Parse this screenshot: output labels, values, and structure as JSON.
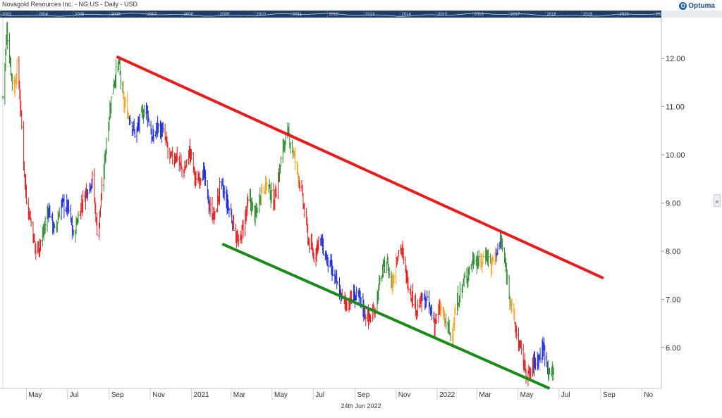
{
  "header": {
    "title": "Novagold Resources Inc. - NG:US - Daily - USD",
    "brand": "Optuma",
    "brand_icon": "optuma-logo-icon"
  },
  "navigator": {
    "year_labels": [
      "2003",
      "2004",
      "2005",
      "2006",
      "2007",
      "2008",
      "2009",
      "2010",
      "2011",
      "2012",
      "2013",
      "2014",
      "2015",
      "2016",
      "2017",
      "2018",
      "2019",
      "2020",
      "2021",
      "2022",
      "2023"
    ],
    "background": "#1e3d6b"
  },
  "footer": {
    "date_label": "24th Jun 2022"
  },
  "side_panel": {
    "collapse_icon": "chevron-left-icon",
    "collapse_glyph": "«"
  },
  "chart_data": {
    "type": "ohlc",
    "title": "Novagold Resources Inc. - NG:US - Daily - USD",
    "x_axis": {
      "ticks": [
        "May",
        "Jul",
        "Sep",
        "Nov",
        "2021",
        "Mar",
        "May",
        "Jul",
        "Sep",
        "Nov",
        "2022",
        "Mar",
        "May",
        "Jul",
        "Sep",
        "No"
      ],
      "tick_dates": [
        "2020-05-01",
        "2020-07-01",
        "2020-09-01",
        "2020-11-01",
        "2021-01-01",
        "2021-03-01",
        "2021-05-01",
        "2021-07-01",
        "2021-09-01",
        "2021-11-01",
        "2022-01-01",
        "2022-03-01",
        "2022-05-01",
        "2022-07-01",
        "2022-09-01",
        "2022-11-01"
      ],
      "range": [
        "2020-03-27",
        "2022-11-30"
      ]
    },
    "y_axis": {
      "ticks": [
        "12.00",
        "11.00",
        "10.00",
        "9.00",
        "8.00",
        "7.00",
        "6.00"
      ],
      "range": [
        5.15,
        12.85
      ],
      "position": "right"
    },
    "grid": false,
    "legend": "none",
    "bar_colors": {
      "up_trend": "#2f8a2f",
      "down_trend": "#e02020",
      "neutral": "#1f2fd8",
      "transition": "#f2a321"
    },
    "price_path": [
      {
        "date": "2020-03-27",
        "close": 11.2,
        "color": "#2f8a2f"
      },
      {
        "date": "2020-04-02",
        "close": 12.6,
        "color": "#2f8a2f"
      },
      {
        "date": "2020-04-07",
        "close": 11.9,
        "color": "#2f8a2f"
      },
      {
        "date": "2020-04-12",
        "close": 11.3,
        "color": "#f2a321"
      },
      {
        "date": "2020-04-18",
        "close": 11.9,
        "color": "#e02020"
      },
      {
        "date": "2020-04-23",
        "close": 10.8,
        "color": "#e02020"
      },
      {
        "date": "2020-04-30",
        "close": 9.2,
        "color": "#e02020"
      },
      {
        "date": "2020-05-08",
        "close": 8.6,
        "color": "#e02020"
      },
      {
        "date": "2020-05-15",
        "close": 8.0,
        "color": "#e02020"
      },
      {
        "date": "2020-05-25",
        "close": 8.3,
        "color": "#2f8a2f"
      },
      {
        "date": "2020-06-03",
        "close": 8.9,
        "color": "#1f2fd8"
      },
      {
        "date": "2020-06-12",
        "close": 8.4,
        "color": "#2f8a2f"
      },
      {
        "date": "2020-06-22",
        "close": 9.0,
        "color": "#1f2fd8"
      },
      {
        "date": "2020-07-02",
        "close": 8.9,
        "color": "#1f2fd8"
      },
      {
        "date": "2020-07-10",
        "close": 8.3,
        "color": "#2f8a2f"
      },
      {
        "date": "2020-07-20",
        "close": 8.9,
        "color": "#e02020"
      },
      {
        "date": "2020-07-30",
        "close": 9.3,
        "color": "#1f2fd8"
      },
      {
        "date": "2020-08-07",
        "close": 9.5,
        "color": "#e02020"
      },
      {
        "date": "2020-08-15",
        "close": 8.3,
        "color": "#e02020"
      },
      {
        "date": "2020-08-22",
        "close": 9.4,
        "color": "#2f8a2f"
      },
      {
        "date": "2020-08-30",
        "close": 10.6,
        "color": "#2f8a2f"
      },
      {
        "date": "2020-09-07",
        "close": 11.5,
        "color": "#2f8a2f"
      },
      {
        "date": "2020-09-15",
        "close": 11.9,
        "color": "#2f8a2f"
      },
      {
        "date": "2020-09-22",
        "close": 11.1,
        "color": "#f2a321"
      },
      {
        "date": "2020-10-01",
        "close": 10.8,
        "color": "#1f2fd8"
      },
      {
        "date": "2020-10-10",
        "close": 10.4,
        "color": "#1f2fd8"
      },
      {
        "date": "2020-10-18",
        "close": 10.8,
        "color": "#2f8a2f"
      },
      {
        "date": "2020-10-26",
        "close": 11.0,
        "color": "#1f2fd8"
      },
      {
        "date": "2020-11-04",
        "close": 10.3,
        "color": "#1f2fd8"
      },
      {
        "date": "2020-11-12",
        "close": 10.6,
        "color": "#1f2fd8"
      },
      {
        "date": "2020-11-22",
        "close": 10.4,
        "color": "#e02020"
      },
      {
        "date": "2020-11-30",
        "close": 9.9,
        "color": "#e02020"
      },
      {
        "date": "2020-12-10",
        "close": 10.0,
        "color": "#e02020"
      },
      {
        "date": "2020-12-20",
        "close": 9.6,
        "color": "#e02020"
      },
      {
        "date": "2020-12-30",
        "close": 10.1,
        "color": "#e02020"
      },
      {
        "date": "2021-01-08",
        "close": 9.4,
        "color": "#e02020"
      },
      {
        "date": "2021-01-18",
        "close": 9.7,
        "color": "#1f2fd8"
      },
      {
        "date": "2021-01-28",
        "close": 8.9,
        "color": "#e02020"
      },
      {
        "date": "2021-02-05",
        "close": 8.7,
        "color": "#e02020"
      },
      {
        "date": "2021-02-13",
        "close": 9.4,
        "color": "#1f2fd8"
      },
      {
        "date": "2021-02-23",
        "close": 9.0,
        "color": "#1f2fd8"
      },
      {
        "date": "2021-03-04",
        "close": 8.6,
        "color": "#e02020"
      },
      {
        "date": "2021-03-12",
        "close": 8.1,
        "color": "#e02020"
      },
      {
        "date": "2021-03-20",
        "close": 8.6,
        "color": "#e02020"
      },
      {
        "date": "2021-03-28",
        "close": 9.1,
        "color": "#2f8a2f"
      },
      {
        "date": "2021-04-06",
        "close": 8.7,
        "color": "#2f8a2f"
      },
      {
        "date": "2021-04-15",
        "close": 9.3,
        "color": "#f2a321"
      },
      {
        "date": "2021-04-24",
        "close": 9.4,
        "color": "#2f8a2f"
      },
      {
        "date": "2021-05-03",
        "close": 9.0,
        "color": "#e02020"
      },
      {
        "date": "2021-05-11",
        "close": 9.6,
        "color": "#2f8a2f"
      },
      {
        "date": "2021-05-19",
        "close": 10.3,
        "color": "#2f8a2f"
      },
      {
        "date": "2021-05-26",
        "close": 10.4,
        "color": "#2f8a2f"
      },
      {
        "date": "2021-06-02",
        "close": 10.0,
        "color": "#f2a321"
      },
      {
        "date": "2021-06-10",
        "close": 9.5,
        "color": "#e02020"
      },
      {
        "date": "2021-06-17",
        "close": 8.9,
        "color": "#e02020"
      },
      {
        "date": "2021-06-24",
        "close": 8.2,
        "color": "#e02020"
      },
      {
        "date": "2021-07-02",
        "close": 7.9,
        "color": "#e02020"
      },
      {
        "date": "2021-07-10",
        "close": 8.3,
        "color": "#1f2fd8"
      },
      {
        "date": "2021-07-19",
        "close": 7.9,
        "color": "#1f2fd8"
      },
      {
        "date": "2021-07-28",
        "close": 7.6,
        "color": "#1f2fd8"
      },
      {
        "date": "2021-08-05",
        "close": 7.3,
        "color": "#1f2fd8"
      },
      {
        "date": "2021-08-13",
        "close": 7.0,
        "color": "#e02020"
      },
      {
        "date": "2021-08-21",
        "close": 6.9,
        "color": "#e02020"
      },
      {
        "date": "2021-08-30",
        "close": 7.1,
        "color": "#1f2fd8"
      },
      {
        "date": "2021-09-08",
        "close": 7.0,
        "color": "#1f2fd8"
      },
      {
        "date": "2021-09-16",
        "close": 6.7,
        "color": "#e02020"
      },
      {
        "date": "2021-09-24",
        "close": 6.6,
        "color": "#e02020"
      },
      {
        "date": "2021-10-02",
        "close": 6.9,
        "color": "#2f8a2f"
      },
      {
        "date": "2021-10-10",
        "close": 7.5,
        "color": "#2f8a2f"
      },
      {
        "date": "2021-10-18",
        "close": 7.8,
        "color": "#2f8a2f"
      },
      {
        "date": "2021-10-26",
        "close": 7.3,
        "color": "#f2a321"
      },
      {
        "date": "2021-11-02",
        "close": 7.9,
        "color": "#e02020"
      },
      {
        "date": "2021-11-08",
        "close": 8.1,
        "color": "#e02020"
      },
      {
        "date": "2021-11-16",
        "close": 7.5,
        "color": "#e02020"
      },
      {
        "date": "2021-11-24",
        "close": 7.1,
        "color": "#e02020"
      },
      {
        "date": "2021-12-02",
        "close": 6.8,
        "color": "#e02020"
      },
      {
        "date": "2021-12-10",
        "close": 7.0,
        "color": "#1f2fd8"
      },
      {
        "date": "2021-12-19",
        "close": 6.9,
        "color": "#1f2fd8"
      },
      {
        "date": "2021-12-28",
        "close": 6.5,
        "color": "#e02020"
      },
      {
        "date": "2022-01-06",
        "close": 6.8,
        "color": "#f2a321"
      },
      {
        "date": "2022-01-14",
        "close": 6.5,
        "color": "#2f8a2f"
      },
      {
        "date": "2022-01-22",
        "close": 6.2,
        "color": "#f2a321"
      },
      {
        "date": "2022-01-30",
        "close": 6.9,
        "color": "#2f8a2f"
      },
      {
        "date": "2022-02-08",
        "close": 7.3,
        "color": "#2f8a2f"
      },
      {
        "date": "2022-02-17",
        "close": 7.6,
        "color": "#2f8a2f"
      },
      {
        "date": "2022-02-26",
        "close": 7.9,
        "color": "#2f8a2f"
      },
      {
        "date": "2022-03-06",
        "close": 7.7,
        "color": "#f2a321"
      },
      {
        "date": "2022-03-14",
        "close": 8.0,
        "color": "#2f8a2f"
      },
      {
        "date": "2022-03-22",
        "close": 7.7,
        "color": "#f2a321"
      },
      {
        "date": "2022-03-30",
        "close": 8.0,
        "color": "#1f2fd8"
      },
      {
        "date": "2022-04-06",
        "close": 8.2,
        "color": "#2f8a2f"
      },
      {
        "date": "2022-04-13",
        "close": 7.6,
        "color": "#2f8a2f"
      },
      {
        "date": "2022-04-20",
        "close": 7.0,
        "color": "#f2a321"
      },
      {
        "date": "2022-04-27",
        "close": 6.4,
        "color": "#e02020"
      },
      {
        "date": "2022-05-04",
        "close": 6.0,
        "color": "#e02020"
      },
      {
        "date": "2022-05-11",
        "close": 5.6,
        "color": "#e02020"
      },
      {
        "date": "2022-05-18",
        "close": 5.4,
        "color": "#e02020"
      },
      {
        "date": "2022-05-25",
        "close": 5.7,
        "color": "#1f2fd8"
      },
      {
        "date": "2022-06-01",
        "close": 5.8,
        "color": "#1f2fd8"
      },
      {
        "date": "2022-06-08",
        "close": 6.0,
        "color": "#1f2fd8"
      },
      {
        "date": "2022-06-15",
        "close": 5.6,
        "color": "#2f8a2f"
      },
      {
        "date": "2022-06-20",
        "close": 5.4,
        "color": "#2f8a2f"
      },
      {
        "date": "2022-06-24",
        "close": 5.6,
        "color": "#2f8a2f"
      }
    ],
    "trend_lines": [
      {
        "name": "resistance",
        "color": "#e51d1d",
        "from": {
          "date": "2020-09-12",
          "price": 12.04
        },
        "to": {
          "date": "2022-09-05",
          "price": 7.44
        }
      },
      {
        "name": "support",
        "color": "#1a8a1a",
        "from": {
          "date": "2021-02-16",
          "price": 8.15
        },
        "to": {
          "date": "2022-06-17",
          "price": 5.15
        }
      }
    ]
  }
}
